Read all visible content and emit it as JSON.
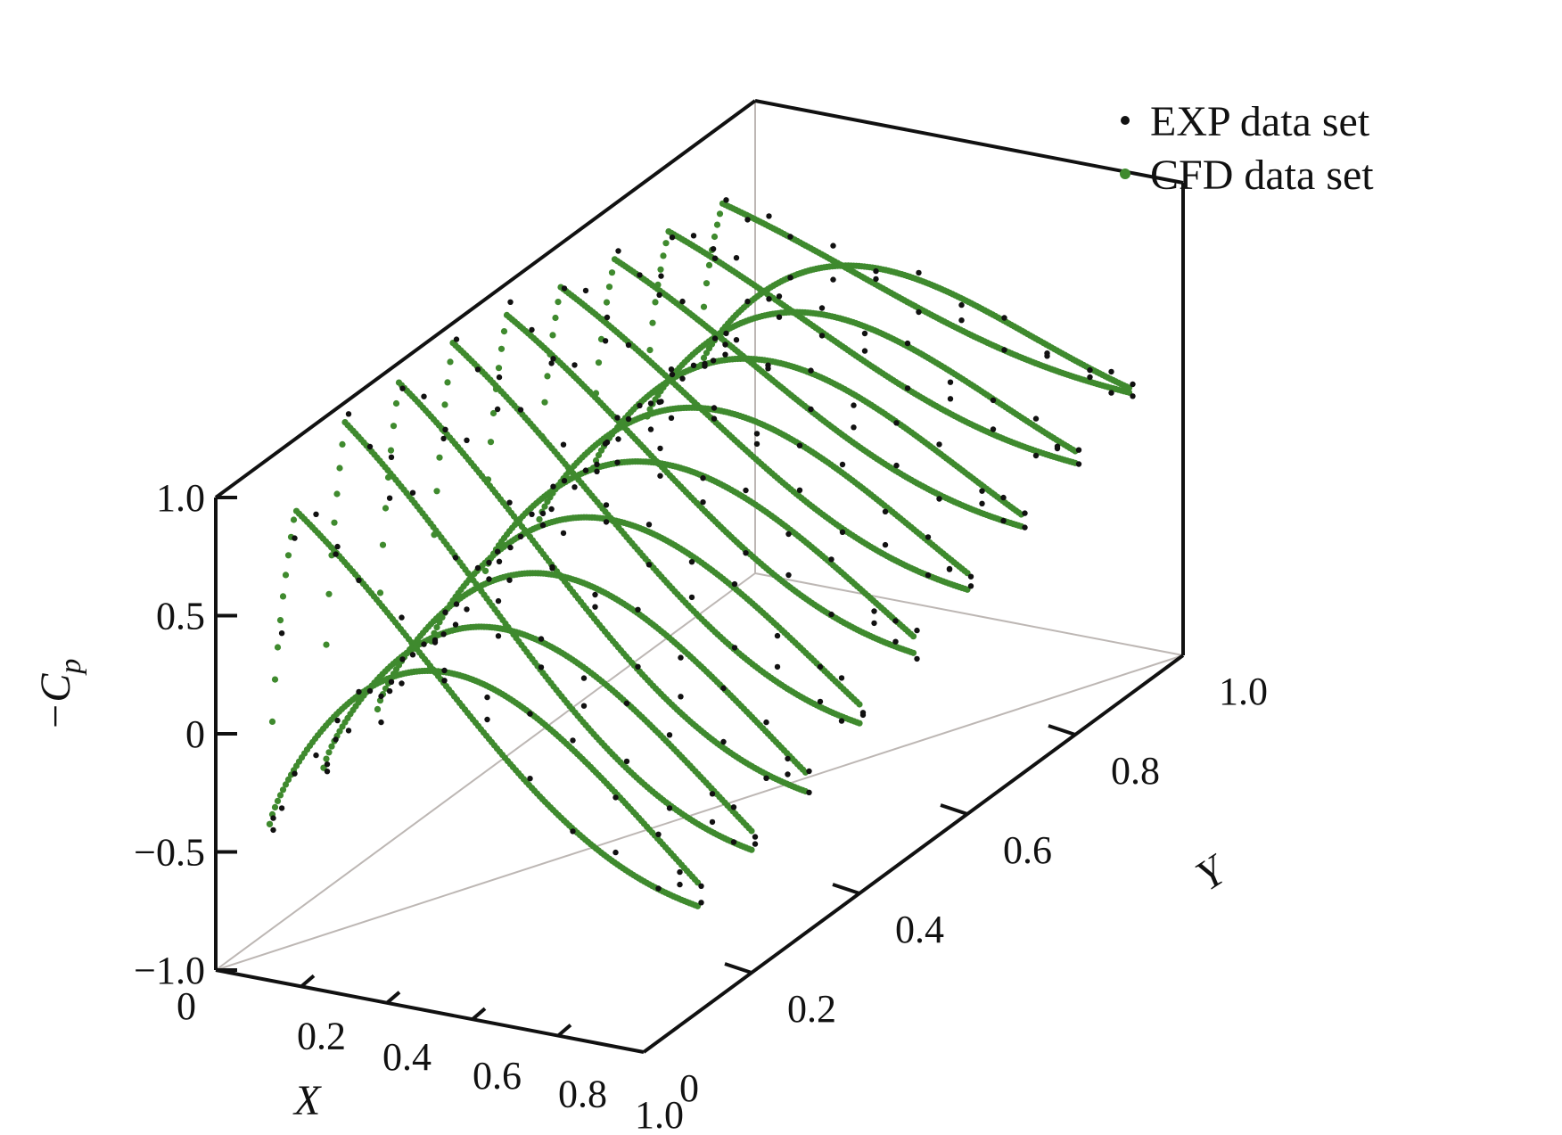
{
  "chart_data": {
    "type": "scatter",
    "projection": "3d",
    "axes": {
      "x": {
        "label": "X",
        "range": [
          0,
          1.0
        ],
        "ticks": [
          0,
          0.2,
          0.4,
          0.6,
          0.8,
          1.0
        ],
        "tick_labels": [
          "0",
          "0.2",
          "0.4",
          "0.6",
          "0.8",
          "1.0"
        ]
      },
      "y": {
        "label": "Y",
        "range": [
          0,
          1.0
        ],
        "ticks": [
          0,
          0.2,
          0.4,
          0.6,
          0.8,
          1.0
        ],
        "tick_labels": [
          "0",
          "0.2",
          "0.4",
          "0.6",
          "0.8",
          "1.0"
        ]
      },
      "z": {
        "label": "−C",
        "label_subscript": "p",
        "range": [
          -1.0,
          1.0
        ],
        "ticks": [
          -1.0,
          -0.5,
          0,
          0.5,
          1.0
        ],
        "tick_labels": [
          "−1.0",
          "−0.5",
          "0",
          "0.5",
          "1.0"
        ]
      }
    },
    "legend": {
      "position": "top-right",
      "entries": [
        {
          "label": "EXP data set",
          "color": "#111111"
        },
        {
          "label": "CFD data set",
          "color": "#3f8a2e"
        }
      ]
    },
    "sections": [
      {
        "y": 0.1,
        "suction_peak": 0.8,
        "peak_x": 0.06,
        "le_value": -0.55,
        "upper_end": -0.55,
        "lower_min": 0.2,
        "lower_end": -0.45
      },
      {
        "y": 0.2,
        "suction_peak": 1.0,
        "peak_x": 0.05,
        "le_value": -0.48,
        "upper_end": -0.48,
        "lower_min": 0.22,
        "lower_end": -0.4
      },
      {
        "y": 0.3,
        "suction_peak": 1.0,
        "peak_x": 0.05,
        "le_value": -0.4,
        "upper_end": -0.4,
        "lower_min": 0.28,
        "lower_end": -0.32
      },
      {
        "y": 0.4,
        "suction_peak": 1.0,
        "peak_x": 0.05,
        "le_value": -0.28,
        "upper_end": -0.28,
        "lower_min": 0.35,
        "lower_end": -0.2
      },
      {
        "y": 0.5,
        "suction_peak": 0.95,
        "peak_x": 0.05,
        "le_value": -0.15,
        "upper_end": -0.15,
        "lower_min": 0.42,
        "lower_end": -0.08
      },
      {
        "y": 0.6,
        "suction_peak": 0.9,
        "peak_x": 0.05,
        "le_value": -0.1,
        "upper_end": -0.05,
        "lower_min": 0.48,
        "lower_end": 0.02
      },
      {
        "y": 0.7,
        "suction_peak": 0.85,
        "peak_x": 0.05,
        "le_value": -0.05,
        "upper_end": 0.05,
        "lower_min": 0.52,
        "lower_end": 0.1
      },
      {
        "y": 0.8,
        "suction_peak": 0.8,
        "peak_x": 0.05,
        "le_value": 0.0,
        "upper_end": 0.15,
        "lower_min": 0.55,
        "lower_end": 0.2
      },
      {
        "y": 0.9,
        "suction_peak": 0.75,
        "peak_x": 0.05,
        "le_value": 0.05,
        "upper_end": 0.28,
        "lower_min": 0.58,
        "lower_end": 0.3
      }
    ],
    "exp_x_stations": [
      0.0,
      0.02,
      0.05,
      0.1,
      0.15,
      0.2,
      0.3,
      0.4,
      0.5,
      0.6,
      0.7,
      0.8,
      0.9,
      0.95,
      1.0
    ]
  }
}
